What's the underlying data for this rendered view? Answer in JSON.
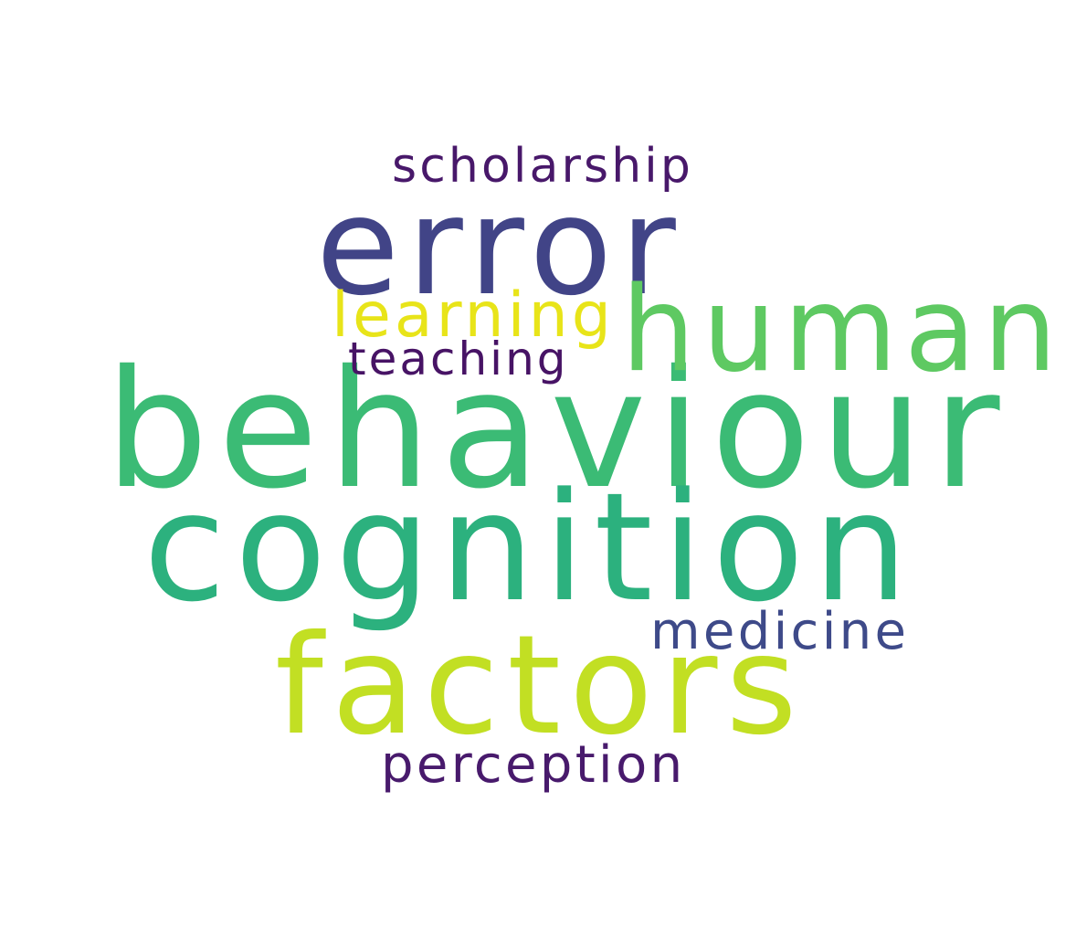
{
  "words": {
    "error": {
      "text": "error",
      "color": "#414487"
    },
    "scholarship": {
      "text": "scholarship",
      "color": "#48186a"
    },
    "learning": {
      "text": "learning",
      "color": "#e8e419"
    },
    "human": {
      "text": "human",
      "color": "#5ec962"
    },
    "teaching": {
      "text": "teaching",
      "color": "#471365"
    },
    "behaviour": {
      "text": "behaviour",
      "color": "#3bbb75"
    },
    "cognition": {
      "text": "cognition",
      "color": "#2cb17e"
    },
    "medicine": {
      "text": "medicine",
      "color": "#3e4a89"
    },
    "factors": {
      "text": "factors",
      "color": "#c2df23"
    },
    "perception": {
      "text": "perception",
      "color": "#481a6c"
    }
  }
}
